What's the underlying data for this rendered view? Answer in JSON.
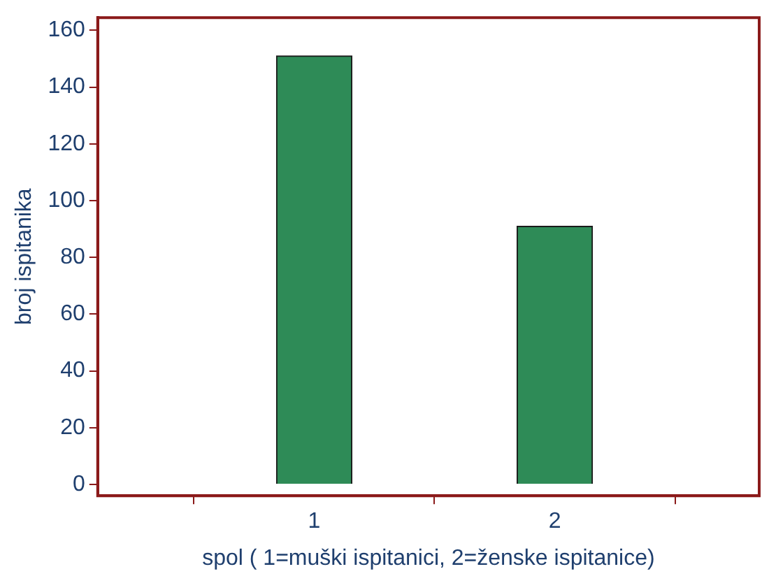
{
  "chart_data": {
    "type": "bar",
    "xlabel": "spol ( 1=muški ispitanici, 2=ženske ispitanice)",
    "ylabel": "broj ispitanika",
    "x": [
      1,
      2
    ],
    "values": [
      151,
      91
    ],
    "color": "#2e8b57",
    "xlim": [
      0.1,
      2.85
    ],
    "xticks": [
      1,
      2
    ],
    "ylim": [
      -4,
      164.5
    ],
    "yticks": [
      0,
      20,
      40,
      60,
      80,
      100,
      120,
      140,
      160
    ],
    "grid": false,
    "legend": false
  }
}
